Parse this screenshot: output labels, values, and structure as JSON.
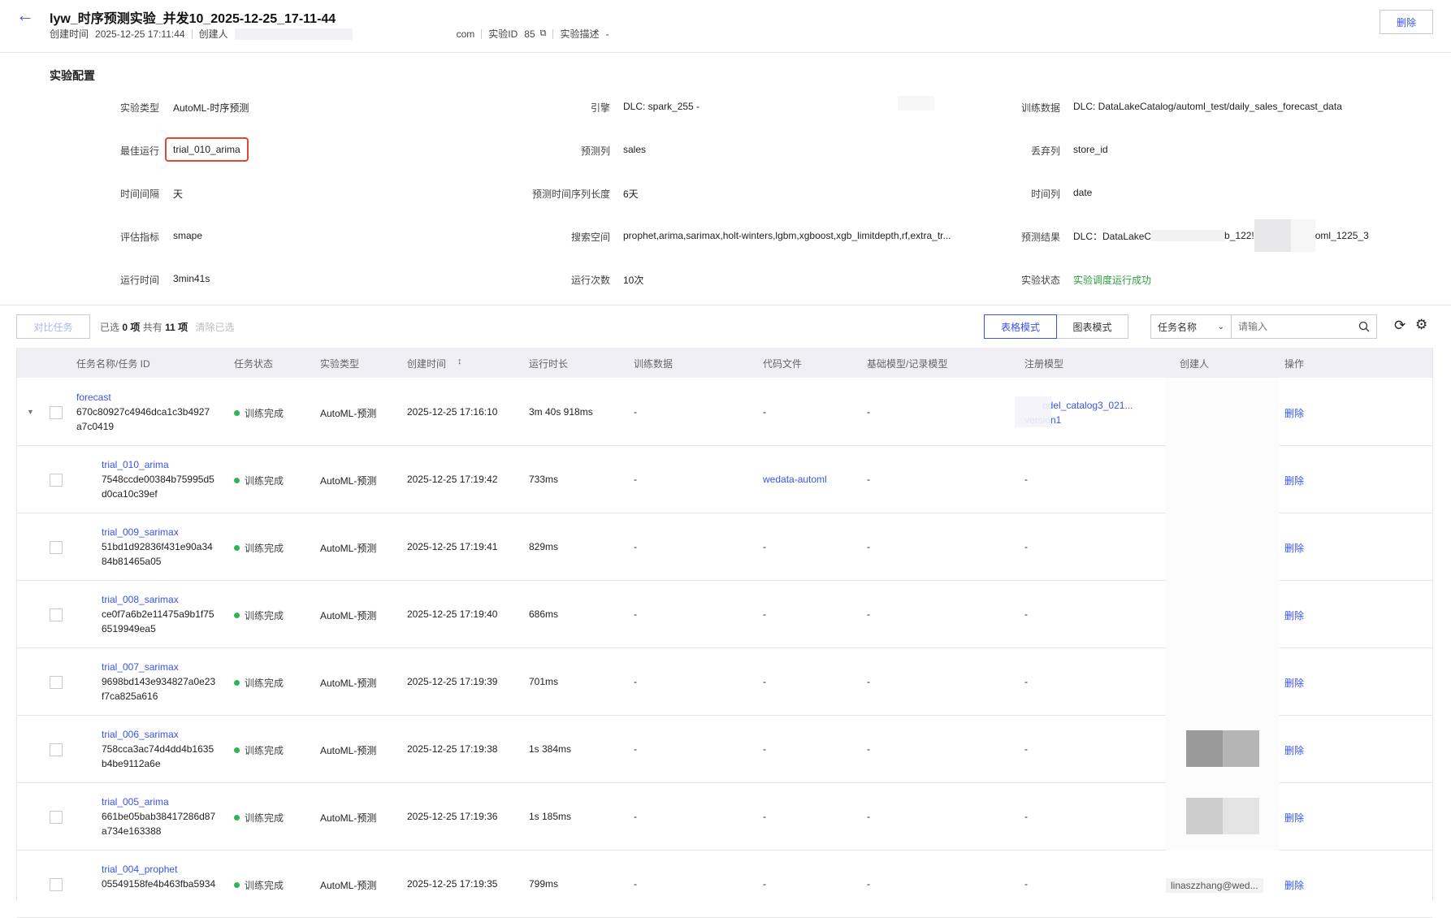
{
  "header": {
    "title": "lyw_时序预测实验_并发10_2025-12-25_17-11-44",
    "created_label": "创建时间",
    "created_value": "2025-12-25 17:11:44",
    "creator_label": "创建人",
    "creator_suffix": "com",
    "exp_id_label": "实验ID",
    "exp_id_value": "85",
    "desc_label": "实验描述",
    "desc_value": "-",
    "delete_label": "删除"
  },
  "config": {
    "title": "实验配置",
    "fields": [
      {
        "label": "实验类型",
        "value": "AutoML-时序预测"
      },
      {
        "label": "引擎",
        "value": "DLC: spark_255 -"
      },
      {
        "label": "训练数据",
        "value": "DLC: DataLakeCatalog/automl_test/daily_sales_forecast_data"
      },
      {
        "label": "最佳运行",
        "value": "trial_010_arima"
      },
      {
        "label": "预测列",
        "value": "sales"
      },
      {
        "label": "丢弃列",
        "value": "store_id"
      },
      {
        "label": "时间间隔",
        "value": "天"
      },
      {
        "label": "预测时间序列长度",
        "value": "6天"
      },
      {
        "label": "时间列",
        "value": "date"
      },
      {
        "label": "评估指标",
        "value": "smape"
      },
      {
        "label": "搜索空间",
        "value": "prophet,arima,sarimax,holt-winters,lgbm,xgboost,xgb_limitdepth,rf,extra_tr..."
      },
      {
        "label": "预测结果",
        "value": "DLC：DataLakeC",
        "value_mid": "b_122!",
        "value_end": "oml_1225_3"
      },
      {
        "label": "运行时间",
        "value": "3min41s"
      },
      {
        "label": "运行次数",
        "value": "10次"
      },
      {
        "label": "实验状态",
        "value": "实验调度运行成功"
      }
    ],
    "status_color": "#2f9e3a",
    "highlight_color": "#e5462f"
  },
  "toolbar": {
    "compare_label": "对比任务",
    "selected_prefix": "已选",
    "selected_count": "0",
    "unit": "项",
    "total_prefix": "共有",
    "total_count": "11",
    "clear_label": "清除已选",
    "table_mode": "表格模式",
    "chart_mode": "图表模式",
    "filter_select": "任务名称",
    "search_placeholder": "请输入"
  },
  "table": {
    "columns": [
      "任务名称/任务 ID",
      "任务状态",
      "实验类型",
      "创建时间",
      "运行时长",
      "训练数据",
      "代码文件",
      "基础模型/记录模型",
      "注册模型",
      "创建人",
      "操作"
    ],
    "rows": [
      {
        "name": "forecast",
        "id1": "670c80927c4946dca1c3b4927",
        "id2": "a7c0419",
        "status": "训练完成",
        "type": "AutoML-预测",
        "created": "2025-12-25 17:16:10",
        "duration": "3m 40s 918ms",
        "data": "-",
        "code": "-",
        "base": "-",
        "model": "odel_catalog3_021...",
        "model2": "version1",
        "creator": "",
        "op": "删除"
      },
      {
        "name": "trial_010_arima",
        "id1": "7548ccde00384b75995d5",
        "id2": "d0ca10c39ef",
        "status": "训练完成",
        "type": "AutoML-预测",
        "created": "2025-12-25 17:19:42",
        "duration": "733ms",
        "data": "-",
        "code": "wedata-automl",
        "base": "-",
        "model": "-",
        "creator": "",
        "op": "删除"
      },
      {
        "name": "trial_009_sarimax",
        "id1": "51bd1d92836f431e90a34",
        "id2": "84b81465a05",
        "status": "训练完成",
        "type": "AutoML-预测",
        "created": "2025-12-25 17:19:41",
        "duration": "829ms",
        "data": "-",
        "code": "-",
        "base": "-",
        "model": "-",
        "creator": "",
        "op": "删除"
      },
      {
        "name": "trial_008_sarimax",
        "id1": "ce0f7a6b2e11475a9b1f75",
        "id2": "6519949ea5",
        "status": "训练完成",
        "type": "AutoML-预测",
        "created": "2025-12-25 17:19:40",
        "duration": "686ms",
        "data": "-",
        "code": "-",
        "base": "-",
        "model": "-",
        "creator": "",
        "op": "删除"
      },
      {
        "name": "trial_007_sarimax",
        "id1": "9698bd143e934827a0e23",
        "id2": "f7ca825a616",
        "status": "训练完成",
        "type": "AutoML-预测",
        "created": "2025-12-25 17:19:39",
        "duration": "701ms",
        "data": "-",
        "code": "-",
        "base": "-",
        "model": "-",
        "creator": "",
        "op": "删除"
      },
      {
        "name": "trial_006_sarimax",
        "id1": "758cca3ac74d4dd4b1635",
        "id2": "b4be9112a6e",
        "status": "训练完成",
        "type": "AutoML-预测",
        "created": "2025-12-25 17:19:38",
        "duration": "1s 384ms",
        "data": "-",
        "code": "-",
        "base": "-",
        "model": "-",
        "creator": "",
        "op": "删除"
      },
      {
        "name": "trial_005_arima",
        "id1": "661be05bab38417286d87",
        "id2": "a734e163388",
        "status": "训练完成",
        "type": "AutoML-预测",
        "created": "2025-12-25 17:19:36",
        "duration": "1s 185ms",
        "data": "-",
        "code": "-",
        "base": "-",
        "model": "-",
        "creator": "",
        "op": "删除"
      },
      {
        "name": "trial_004_prophet",
        "id1": "05549158fe4b463fba5934",
        "id2": "",
        "status": "训练完成",
        "type": "AutoML-预测",
        "created": "2025-12-25 17:19:35",
        "duration": "799ms",
        "data": "-",
        "code": "-",
        "base": "-",
        "model": "-",
        "creator": "linaszzhang@wed...",
        "op": "删除"
      }
    ]
  }
}
